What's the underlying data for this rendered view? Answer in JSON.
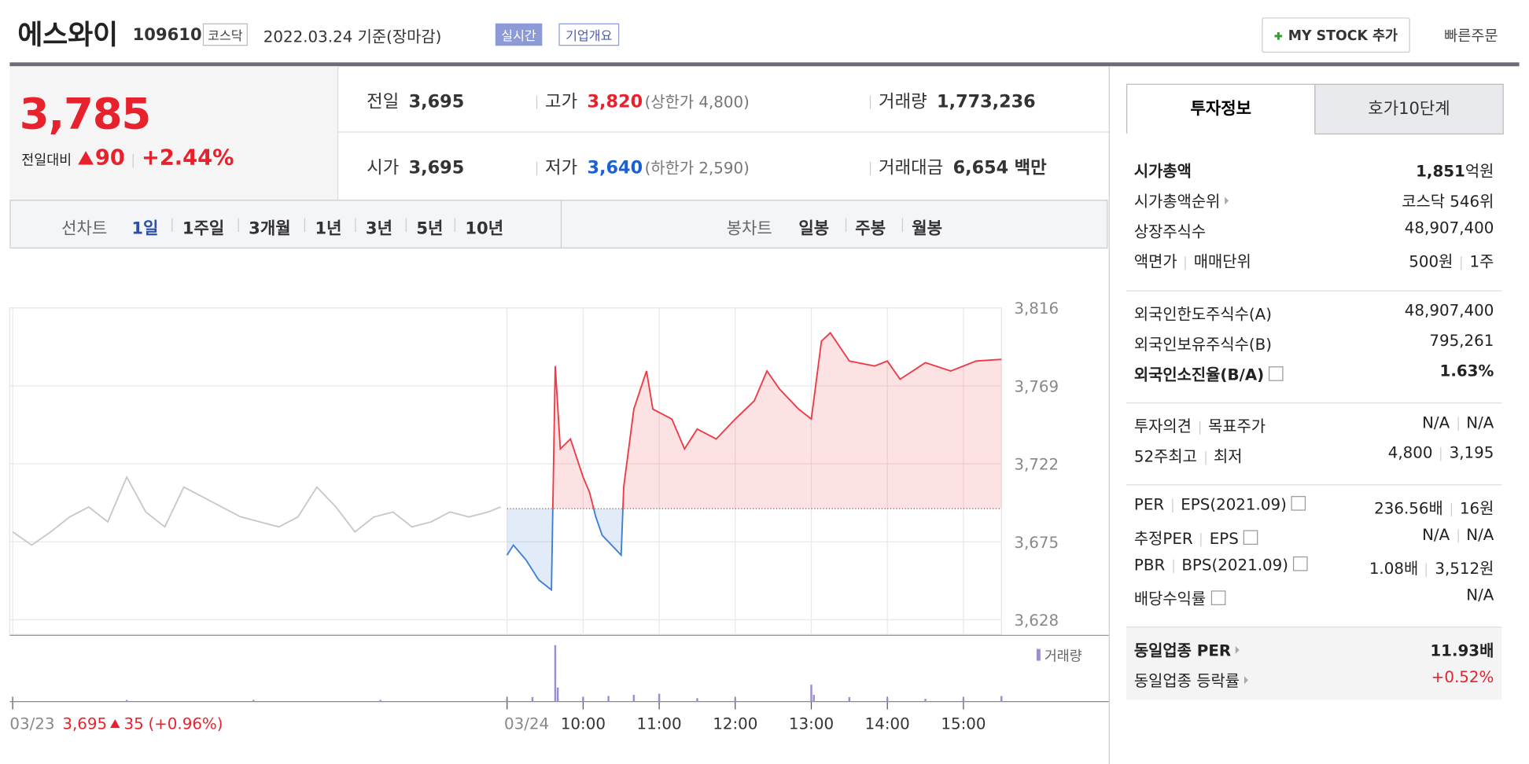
{
  "header": {
    "name": "에스와이",
    "code": "109610",
    "market": "코스닥",
    "date": "2022.03.24 기준(장마감)",
    "realtime": "실시간",
    "company": "기업개요",
    "mystock": "MY STOCK 추가",
    "quick_order": "빠른주문"
  },
  "price": {
    "current": "3,785",
    "change_label": "전일대비",
    "change": "90",
    "rate": "+2.44%"
  },
  "summary": [
    {
      "label": "전일",
      "value": "3,695"
    },
    {
      "label": "고가",
      "value": "3,820",
      "note": "(상한가 4,800)",
      "color": "red"
    },
    {
      "label": "거래량",
      "value": "1,773,236"
    },
    {
      "label": "시가",
      "value": "3,695"
    },
    {
      "label": "저가",
      "value": "3,640",
      "note": "(하한가 2,590)",
      "color": "blue"
    },
    {
      "label": "거래대금",
      "value": "6,654",
      "unit": "백만"
    }
  ],
  "tabs": {
    "line_chart": "선차트",
    "periods": [
      "1일",
      "1주일",
      "3개월",
      "1년",
      "3년",
      "5년",
      "10년"
    ],
    "candle_chart": "봉차트",
    "candles": [
      "일봉",
      "주봉",
      "월봉"
    ]
  },
  "chart": {
    "type": "line",
    "ylim": [
      3628,
      3816
    ],
    "yticks": [
      {
        "value": 3628,
        "label": "3,628"
      },
      {
        "value": 3675,
        "label": "3,675"
      },
      {
        "value": 3722,
        "label": "3,722"
      },
      {
        "value": 3769,
        "label": "3,769"
      },
      {
        "value": 3816,
        "label": "3,816"
      }
    ],
    "xlim": [
      -390,
      390
    ],
    "xticks": [
      {
        "value": -390,
        "label": "03/23"
      },
      {
        "value": 0,
        "label": "03/24"
      },
      {
        "value": 60,
        "label": "10:00"
      },
      {
        "value": 120,
        "label": "11:00"
      },
      {
        "value": 180,
        "label": "12:00"
      },
      {
        "value": 240,
        "label": "13:00"
      },
      {
        "value": 300,
        "label": "14:00"
      },
      {
        "value": 360,
        "label": "15:00"
      }
    ],
    "base": 3695,
    "series": [
      {
        "color": "#c8c8c8",
        "x": [
          -390,
          -375,
          -360,
          -345,
          -330,
          -315,
          -300,
          -285,
          -270,
          -255,
          -240,
          -225,
          -210,
          -195,
          -180,
          -165,
          -150,
          -135,
          -120,
          -105,
          -90,
          -75,
          -60,
          -45,
          -30,
          -15,
          -5
        ],
        "values": [
          3681,
          3673,
          3681,
          3690,
          3696,
          3687,
          3714,
          3693,
          3684,
          3708,
          3702,
          3696,
          3690,
          3687,
          3684,
          3690,
          3708,
          3696,
          3681,
          3690,
          3693,
          3684,
          3687,
          3693,
          3690,
          3693,
          3696
        ]
      },
      {
        "color_up": "#ef3a46",
        "color_down": "#3a7ed8",
        "x": [
          0,
          5,
          15,
          25,
          35,
          38,
          42,
          50,
          60,
          65,
          70,
          75,
          90,
          92,
          100,
          110,
          115,
          130,
          140,
          150,
          165,
          180,
          195,
          205,
          215,
          230,
          240,
          248,
          255,
          270,
          290,
          300,
          310,
          330,
          350,
          370,
          390
        ],
        "values": [
          3667,
          3673,
          3664,
          3652,
          3646,
          3781,
          3731,
          3737,
          3714,
          3705,
          3690,
          3679,
          3667,
          3708,
          3755,
          3778,
          3755,
          3749,
          3731,
          3743,
          3737,
          3749,
          3760,
          3778,
          3767,
          3755,
          3749,
          3796,
          3801,
          3784,
          3781,
          3784,
          3773,
          3783,
          3778,
          3784,
          3785
        ]
      }
    ],
    "volume": {
      "label": "거래량",
      "color": "#9b8fd0",
      "ylim": [
        0,
        100
      ],
      "x": [
        -300,
        -200,
        -100,
        0,
        20,
        38,
        40,
        60,
        80,
        100,
        120,
        150,
        180,
        240,
        242,
        270,
        300,
        330,
        360,
        390
      ],
      "values": [
        3,
        3,
        3,
        5,
        8,
        100,
        25,
        8,
        10,
        12,
        14,
        6,
        6,
        30,
        12,
        8,
        6,
        5,
        5,
        10
      ]
    },
    "prev_close": "3,695",
    "prev_change": "35",
    "prev_rate": "(+0.96%)"
  },
  "info": {
    "tabs": [
      "투자정보",
      "호가10단계"
    ],
    "groups": [
      [
        {
          "label": [
            "시가총액"
          ],
          "bold": true,
          "value": [
            "1,851"
          ],
          "unit": "억원"
        },
        {
          "label": [
            "시가총액순위"
          ],
          "arrow": true,
          "value": [
            "코스닥 546위"
          ]
        },
        {
          "label": [
            "상장주식수"
          ],
          "value": [
            "48,907,400"
          ]
        },
        {
          "label": [
            "액면가",
            "매매단위"
          ],
          "value": [
            "500원",
            "1주"
          ]
        }
      ],
      [
        {
          "label": [
            "외국인한도주식수(A)"
          ],
          "value": [
            "48,907,400"
          ]
        },
        {
          "label": [
            "외국인보유주식수(B)"
          ],
          "value": [
            "795,261"
          ]
        },
        {
          "label": [
            "외국인소진율(B/A)"
          ],
          "bold": true,
          "help": true,
          "value": [
            "1.63%"
          ]
        }
      ],
      [
        {
          "label": [
            "투자의견",
            "목표주가"
          ],
          "value": [
            "N/A",
            "N/A"
          ]
        },
        {
          "label": [
            "52주최고",
            "최저"
          ],
          "value": [
            "4,800",
            "3,195"
          ]
        }
      ],
      [
        {
          "label": [
            "PER",
            "EPS(2021.09)"
          ],
          "help": true,
          "value": [
            "236.56배",
            "16원"
          ]
        },
        {
          "label": [
            "추정PER",
            "EPS"
          ],
          "help": true,
          "value": [
            "N/A",
            "N/A"
          ]
        },
        {
          "label": [
            "PBR",
            "BPS(2021.09)"
          ],
          "help": true,
          "value": [
            "1.08배",
            "3,512원"
          ]
        },
        {
          "label": [
            "배당수익률"
          ],
          "help": true,
          "value": [
            "N/A"
          ]
        }
      ],
      [
        {
          "label": [
            "동일업종 PER"
          ],
          "bold": true,
          "arrow": true,
          "value": [
            "11.93배"
          ]
        },
        {
          "label": [
            "동일업종 등락률"
          ],
          "arrow": true,
          "value": [
            "+0.52%"
          ],
          "color": "#e8222d"
        }
      ]
    ]
  }
}
